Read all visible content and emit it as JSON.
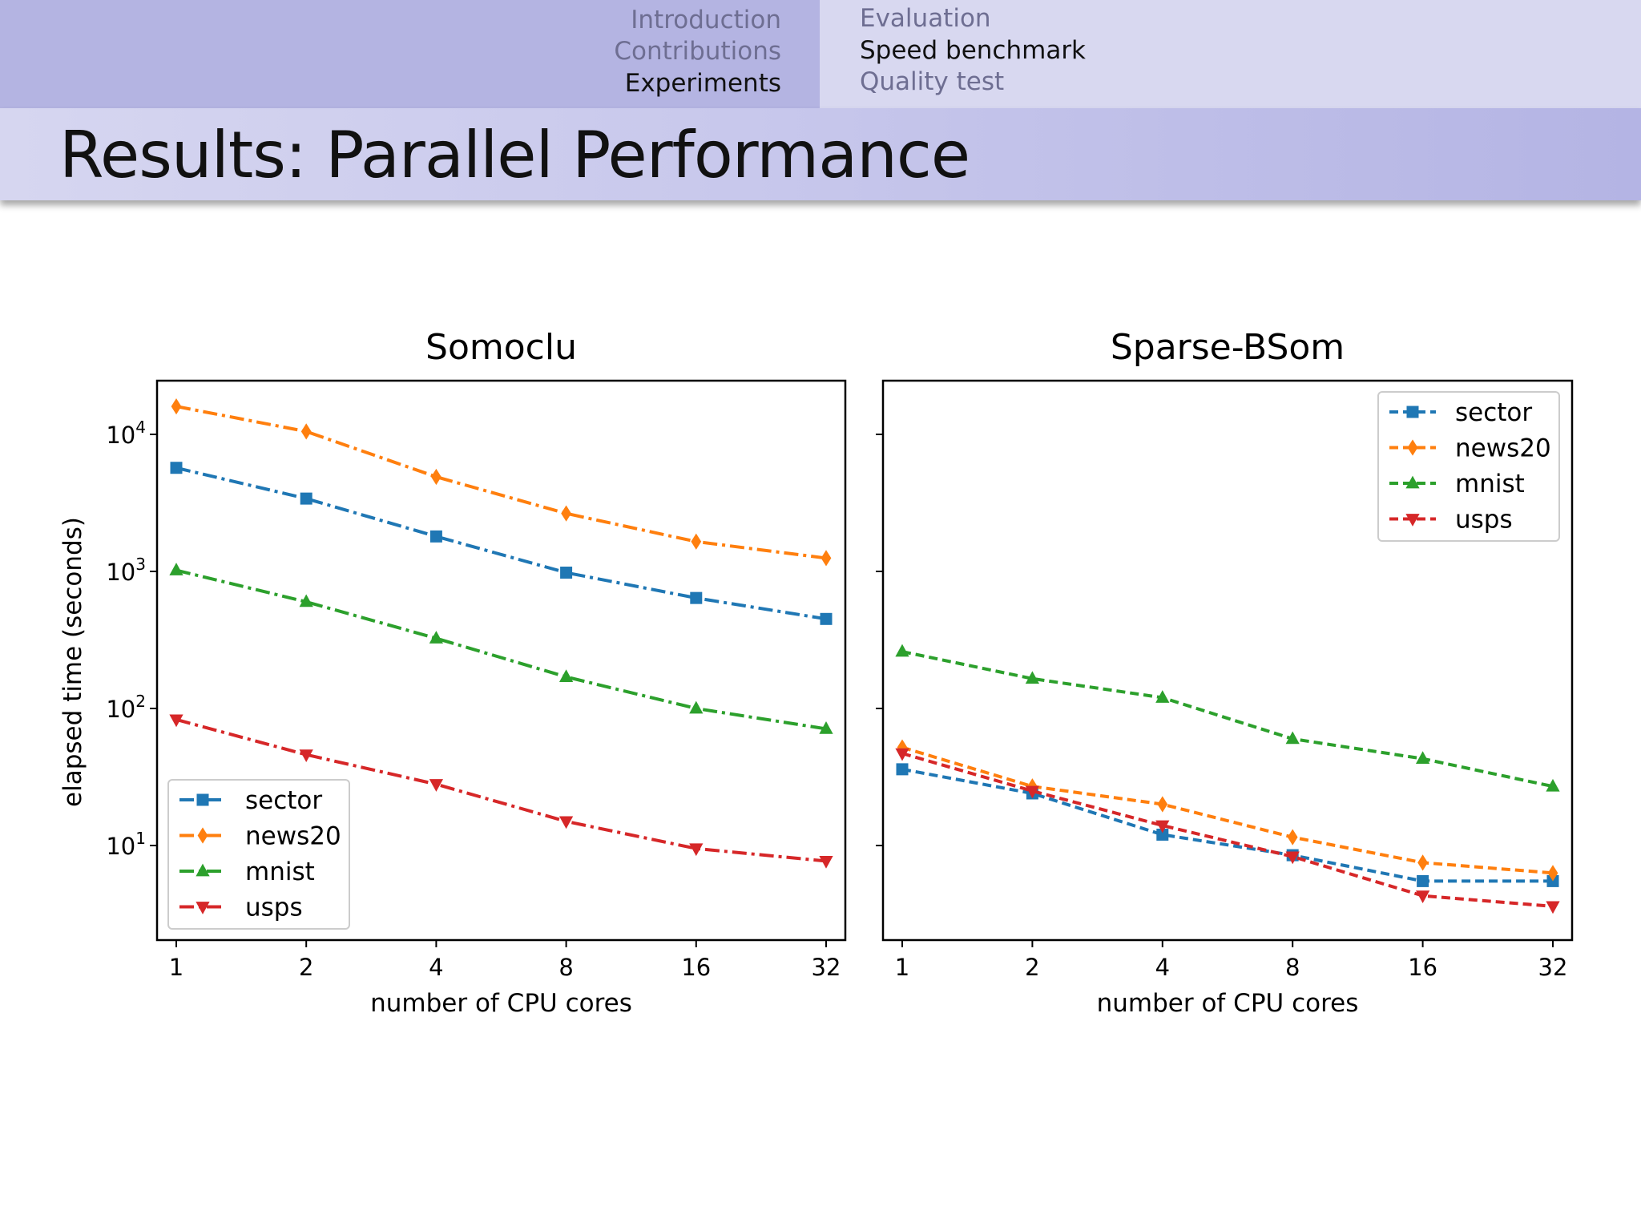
{
  "nav": {
    "left": [
      {
        "label": "Introduction",
        "active": false
      },
      {
        "label": "Contributions",
        "active": false
      },
      {
        "label": "Experiments",
        "active": true
      }
    ],
    "right": [
      {
        "label": "Evaluation",
        "active": false
      },
      {
        "label": "Speed benchmark",
        "active": true
      },
      {
        "label": "Quality test",
        "active": false
      }
    ]
  },
  "slide": {
    "title": "Results: Parallel Performance"
  },
  "chart_data": [
    {
      "type": "line",
      "title": "Somoclu",
      "xlabel": "number of CPU cores",
      "ylabel": "elapsed time (seconds)",
      "xscale": "log2",
      "yscale": "log10",
      "x": [
        1,
        2,
        4,
        8,
        16,
        32
      ],
      "x_tick_labels": [
        "1",
        "2",
        "4",
        "8",
        "16",
        "32"
      ],
      "y_ticks": [
        10,
        100,
        1000,
        10000
      ],
      "y_tick_labels": [
        {
          "base": "10",
          "exp": "1"
        },
        {
          "base": "10",
          "exp": "2"
        },
        {
          "base": "10",
          "exp": "3"
        },
        {
          "base": "10",
          "exp": "4"
        }
      ],
      "linestyle": "dashdot",
      "legend_position": "lower-left",
      "series": [
        {
          "name": "sector",
          "color": "#1f77b4",
          "marker": "square",
          "values": [
            5700,
            3400,
            1800,
            980,
            640,
            450
          ]
        },
        {
          "name": "news20",
          "color": "#ff7f0e",
          "marker": "diamond",
          "values": [
            16000,
            10500,
            4900,
            2650,
            1650,
            1250
          ]
        },
        {
          "name": "mnist",
          "color": "#2ca02c",
          "marker": "triangle-up",
          "values": [
            1020,
            600,
            325,
            170,
            100,
            71
          ]
        },
        {
          "name": "usps",
          "color": "#d62728",
          "marker": "triangle-down",
          "values": [
            83,
            46,
            28,
            15,
            9.5,
            7.7
          ]
        }
      ]
    },
    {
      "type": "line",
      "title": "Sparse-BSom",
      "xlabel": "number of CPU cores",
      "xscale": "log2",
      "yscale": "log10",
      "x": [
        1,
        2,
        4,
        8,
        16,
        32
      ],
      "x_tick_labels": [
        "1",
        "2",
        "4",
        "8",
        "16",
        "32"
      ],
      "y_ticks": [
        10,
        100,
        1000,
        10000
      ],
      "linestyle": "dashed",
      "legend_position": "upper-right",
      "series": [
        {
          "name": "sector",
          "color": "#1f77b4",
          "marker": "square",
          "values": [
            36,
            24,
            12,
            8.5,
            5.5,
            5.5
          ]
        },
        {
          "name": "news20",
          "color": "#ff7f0e",
          "marker": "diamond",
          "values": [
            52,
            27,
            20,
            11.5,
            7.5,
            6.3
          ]
        },
        {
          "name": "mnist",
          "color": "#2ca02c",
          "marker": "triangle-up",
          "values": [
            260,
            165,
            120,
            60,
            43,
            27
          ]
        },
        {
          "name": "usps",
          "color": "#d62728",
          "marker": "triangle-down",
          "values": [
            47,
            25,
            14,
            8.3,
            4.3,
            3.6
          ]
        }
      ]
    }
  ]
}
